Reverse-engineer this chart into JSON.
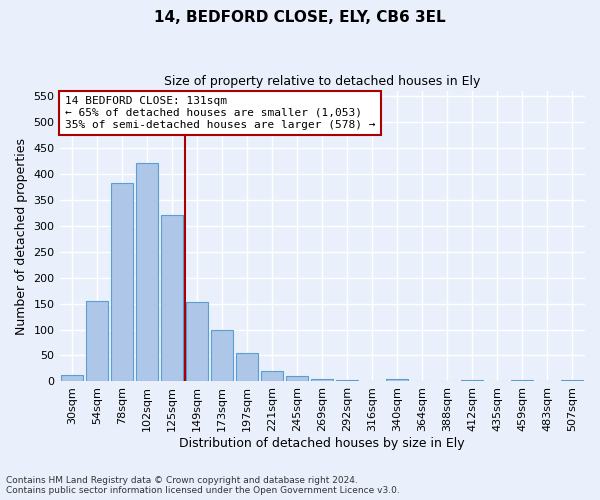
{
  "title1": "14, BEDFORD CLOSE, ELY, CB6 3EL",
  "title2": "Size of property relative to detached houses in Ely",
  "xlabel": "Distribution of detached houses by size in Ely",
  "ylabel": "Number of detached properties",
  "footer1": "Contains HM Land Registry data © Crown copyright and database right 2024.",
  "footer2": "Contains public sector information licensed under the Open Government Licence v3.0.",
  "bar_labels": [
    "30sqm",
    "54sqm",
    "78sqm",
    "102sqm",
    "125sqm",
    "149sqm",
    "173sqm",
    "197sqm",
    "221sqm",
    "245sqm",
    "269sqm",
    "292sqm",
    "316sqm",
    "340sqm",
    "364sqm",
    "388sqm",
    "412sqm",
    "435sqm",
    "459sqm",
    "483sqm",
    "507sqm"
  ],
  "bar_values": [
    13,
    155,
    383,
    420,
    320,
    153,
    100,
    55,
    20,
    10,
    4,
    2,
    1,
    5,
    1,
    0,
    3,
    0,
    2,
    0,
    3
  ],
  "bar_color": "#aec6e8",
  "bar_edge_color": "#5a9fd4",
  "background_color": "#eaf0fb",
  "grid_color": "#ffffff",
  "vline_x": 4.5,
  "vline_color": "#aa0000",
  "annotation_text": "14 BEDFORD CLOSE: 131sqm\n← 65% of detached houses are smaller (1,053)\n35% of semi-detached houses are larger (578) →",
  "annotation_box_color": "#ffffff",
  "annotation_box_edge_color": "#aa0000",
  "ylim": [
    0,
    560
  ],
  "yticks": [
    0,
    50,
    100,
    150,
    200,
    250,
    300,
    350,
    400,
    450,
    500,
    550
  ],
  "title1_fontsize": 11,
  "title2_fontsize": 9,
  "xlabel_fontsize": 9,
  "ylabel_fontsize": 9,
  "tick_fontsize": 8,
  "annot_fontsize": 8,
  "footer_fontsize": 6.5
}
